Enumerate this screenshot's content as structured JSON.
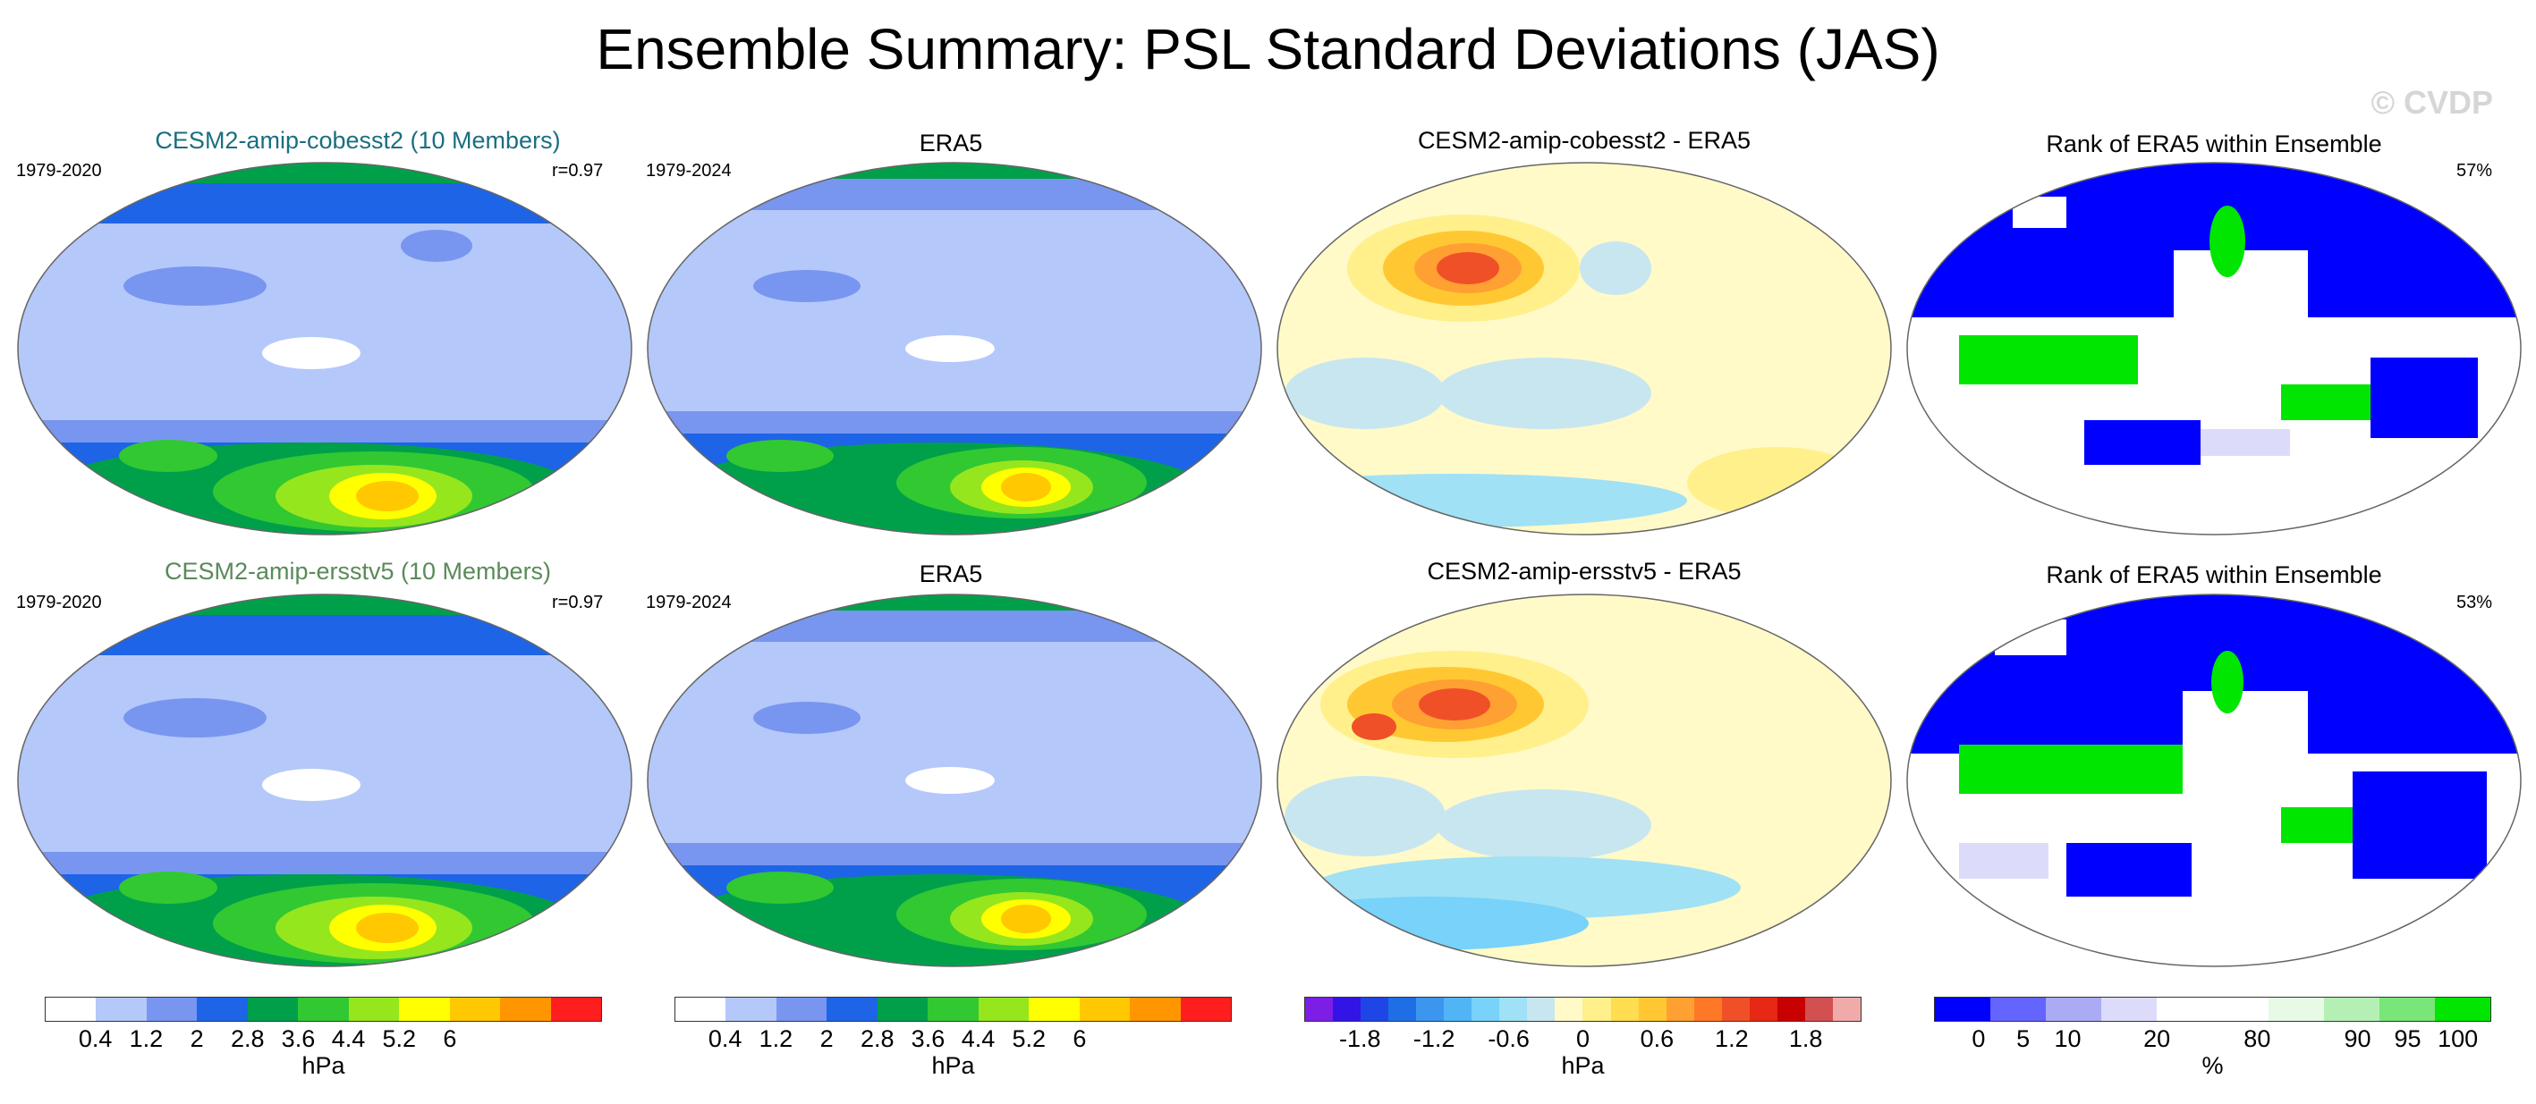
{
  "figure": {
    "title": "Ensemble Summary: PSL Standard Deviations (JAS)",
    "watermark": "© CVDP"
  },
  "rows": [
    {
      "model_title": "CESM2-amip-cobesst2 (10 Members)",
      "model_title_color": "#1a6f80",
      "model_period": "1979-2020",
      "model_corr": "r=0.97",
      "obs_title": "ERA5",
      "obs_period": "1979-2024",
      "diff_title": "CESM2-amip-cobesst2 - ERA5",
      "rank_title": "Rank of ERA5 within Ensemble",
      "rank_pct": "57%"
    },
    {
      "model_title": "CESM2-amip-ersstv5 (10 Members)",
      "model_title_color": "#5a8a5a",
      "model_period": "1979-2020",
      "model_corr": "r=0.97",
      "obs_title": "ERA5",
      "obs_period": "1979-2024",
      "diff_title": "CESM2-amip-ersstv5 - ERA5",
      "rank_title": "Rank of ERA5 within Ensemble",
      "rank_pct": "53%"
    }
  ],
  "colorbars": {
    "sd": {
      "colors": [
        "#ffffff",
        "#b4c8fa",
        "#7896f0",
        "#1e64e6",
        "#00a04b",
        "#32c832",
        "#96e61e",
        "#ffff00",
        "#ffc800",
        "#ff9600",
        "#ff1e1e"
      ],
      "ticks": [
        "0.4",
        "1.2",
        "2",
        "2.8",
        "3.6",
        "4.4",
        "5.2",
        "6"
      ],
      "unit": "hPa"
    },
    "diff": {
      "colors": [
        "#7d1ee6",
        "#3214e6",
        "#1e46e6",
        "#1e6ee6",
        "#3c96f0",
        "#50b4f5",
        "#78d2fa",
        "#a0e1f5",
        "#c8e6f0",
        "#fffac8",
        "#fff08c",
        "#ffdc50",
        "#ffc832",
        "#ffa032",
        "#ff7828",
        "#f05028",
        "#e62814",
        "#c80000",
        "#d25050",
        "#f0aaaa"
      ],
      "ticks": [
        "-1.8",
        "-1.2",
        "-0.6",
        "0",
        "0.6",
        "1.2",
        "1.8"
      ],
      "unit": "hPa"
    },
    "rank": {
      "colors": [
        "#0000ff",
        "#6464ff",
        "#aaaaf5",
        "#dcdcfa",
        "#ffffff",
        "#ffffff",
        "#e6fae6",
        "#b4f0b4",
        "#78e678",
        "#00e600"
      ],
      "ticks": [
        "0",
        "5",
        "10",
        "20",
        "80",
        "90",
        "95",
        "100"
      ],
      "unit": "%"
    }
  }
}
